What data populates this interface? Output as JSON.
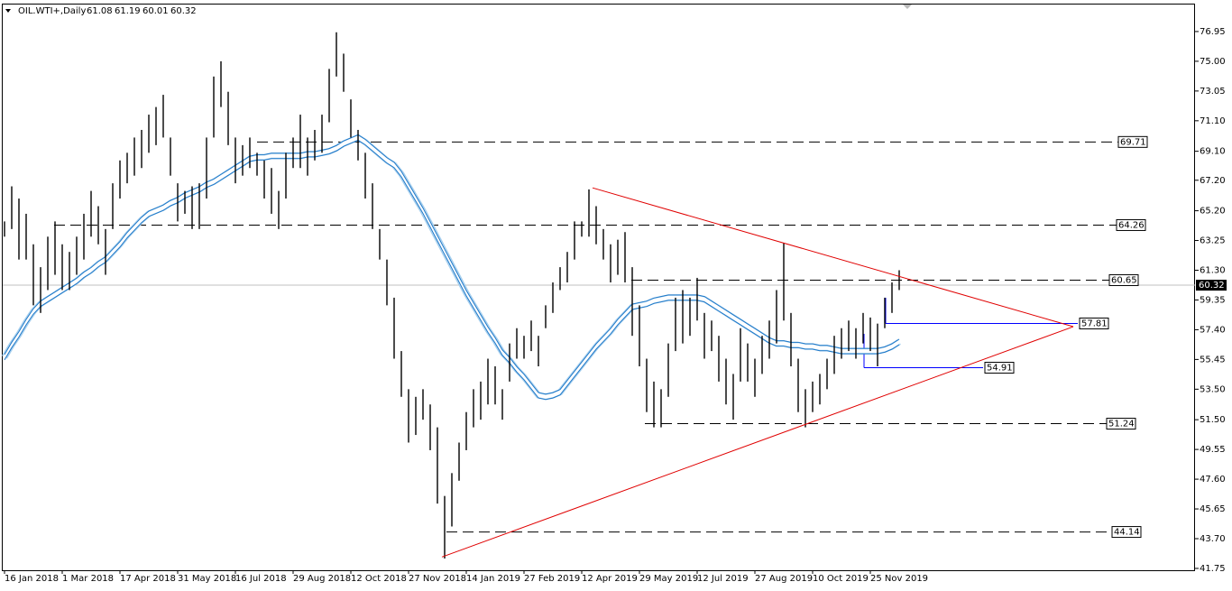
{
  "chart_data": {
    "type": "ohlc",
    "title": "OIL.WTI+,Daily",
    "header_values": [
      61.08,
      61.19,
      60.01,
      60.32
    ],
    "categories": [
      "16 Jan 2018",
      null,
      null,
      null,
      null,
      null,
      null,
      null,
      "1 Mar 2018",
      null,
      null,
      null,
      null,
      null,
      null,
      null,
      "17 Apr 2018",
      null,
      null,
      null,
      null,
      null,
      null,
      null,
      "31 May 2018",
      null,
      null,
      null,
      null,
      null,
      null,
      null,
      "16 Jul 2018",
      null,
      null,
      null,
      null,
      null,
      null,
      null,
      "29 Aug 2018",
      null,
      null,
      null,
      null,
      null,
      null,
      null,
      "12 Oct 2018",
      null,
      null,
      null,
      null,
      null,
      null,
      null,
      "27 Nov 2018",
      null,
      null,
      null,
      null,
      null,
      null,
      null,
      "14 Jan 2019",
      null,
      null,
      null,
      null,
      null,
      null,
      null,
      "27 Feb 2019",
      null,
      null,
      null,
      null,
      null,
      null,
      null,
      "12 Apr 2019",
      null,
      null,
      null,
      null,
      null,
      null,
      null,
      "29 May 2019",
      null,
      null,
      null,
      null,
      null,
      null,
      null,
      "12 Jul 2019",
      null,
      null,
      null,
      null,
      null,
      null,
      null,
      "27 Aug 2019",
      null,
      null,
      null,
      null,
      null,
      null,
      null,
      "10 Oct 2019",
      null,
      null,
      null,
      null,
      null,
      null,
      null,
      "25 Nov 2019",
      null,
      null,
      null,
      null
    ],
    "bars": {
      "color": "#000000",
      "high": [
        64.5,
        66.8,
        66,
        65,
        63,
        61.5,
        63.5,
        64.5,
        63,
        62.5,
        63.5,
        65,
        66.5,
        65.5,
        64,
        67,
        68.5,
        69,
        70,
        70.5,
        71.5,
        72,
        72.8,
        70,
        67,
        66.5,
        66.8,
        67,
        70,
        74,
        75,
        73,
        70,
        69.5,
        70,
        69,
        68.5,
        68,
        66.5,
        69,
        70,
        71.5,
        70,
        70.5,
        71.5,
        74.5,
        76.9,
        75.5,
        72.5,
        70.5,
        69,
        67,
        64,
        62,
        59.5,
        56,
        53.5,
        53,
        53.5,
        52.5,
        51,
        46.5,
        48,
        50,
        52,
        53.5,
        54,
        55.5,
        55,
        53.5,
        56.5,
        57.5,
        57,
        58,
        57,
        59,
        60.5,
        61.5,
        62.5,
        64.5,
        64.5,
        66.6,
        65.5,
        64,
        63,
        63.3,
        63.8,
        61.5,
        59,
        55.5,
        54,
        53.5,
        56.5,
        59.5,
        60,
        59.5,
        60.8,
        58.5,
        58,
        57,
        55.5,
        54.5,
        57.5,
        56.5,
        55.5,
        57,
        58,
        60,
        63.1,
        58.5,
        55.5,
        53.5,
        54,
        54.5,
        55.5,
        57,
        57.5,
        58,
        57.5,
        58.5,
        58.2,
        57.8,
        59.5,
        60.5,
        61.3
      ],
      "low": [
        63.5,
        64,
        62,
        62,
        59,
        58.5,
        60,
        61,
        60,
        60,
        61,
        62,
        63.5,
        63,
        61,
        64,
        66,
        67,
        67.5,
        68,
        69,
        69.5,
        70,
        67.5,
        64.5,
        65,
        64,
        64,
        66,
        70,
        72,
        69.5,
        67,
        67.5,
        68,
        67.5,
        66,
        65,
        64,
        66,
        68,
        68,
        67.5,
        68.5,
        69,
        71,
        74,
        73,
        70,
        68.5,
        66,
        64,
        62,
        59,
        55.5,
        53,
        50,
        50.5,
        51.5,
        49.5,
        46,
        42.4,
        44.5,
        47.5,
        49.5,
        51,
        51.5,
        52.5,
        52.5,
        51.5,
        54,
        55.5,
        55.5,
        56,
        55,
        57.5,
        58.5,
        60,
        60.5,
        62,
        63.5,
        63.5,
        63,
        62,
        60.5,
        61,
        60.5,
        57,
        55,
        52,
        51,
        51,
        53,
        56,
        56.5,
        57,
        58,
        55.5,
        56,
        54,
        52.5,
        51.5,
        54,
        54,
        53,
        54.5,
        55.5,
        56.5,
        58,
        55,
        52,
        51,
        52,
        52.5,
        53.5,
        54.5,
        55.5,
        56,
        55.5,
        56.5,
        56,
        55,
        57.5,
        58.5,
        60
      ]
    },
    "ma": {
      "color": "#1e78c8",
      "band_color": "#a8d0ee",
      "values": [
        55.6,
        56.4,
        57.1,
        57.9,
        58.6,
        59.1,
        59.4,
        59.7,
        60,
        60.3,
        60.6,
        61,
        61.3,
        61.7,
        62,
        62.5,
        63,
        63.6,
        64.1,
        64.6,
        65,
        65.2,
        65.4,
        65.7,
        65.9,
        66.2,
        66.4,
        66.6,
        66.9,
        67.1,
        67.4,
        67.7,
        68,
        68.3,
        68.6,
        68.7,
        68.7,
        68.8,
        68.8,
        68.8,
        68.8,
        68.8,
        68.9,
        68.9,
        69,
        69.1,
        69.3,
        69.6,
        69.8,
        70,
        69.7,
        69.3,
        68.9,
        68.5,
        68.2,
        67.6,
        66.8,
        66,
        65.2,
        64.3,
        63.4,
        62.5,
        61.6,
        60.7,
        59.8,
        59,
        58.2,
        57.4,
        56.7,
        55.9,
        55.4,
        54.8,
        54.3,
        53.7,
        53.1,
        53,
        53.1,
        53.3,
        53.9,
        54.5,
        55.1,
        55.7,
        56.3,
        56.8,
        57.3,
        57.9,
        58.4,
        58.9,
        59,
        59.1,
        59.3,
        59.4,
        59.5,
        59.5,
        59.5,
        59.5,
        59.5,
        59.4,
        59.1,
        58.8,
        58.5,
        58.2,
        57.9,
        57.6,
        57.3,
        57,
        56.7,
        56.5,
        56.5,
        56.4,
        56.4,
        56.3,
        56.3,
        56.2,
        56.2,
        56.1,
        56,
        56,
        56,
        56,
        56,
        56,
        56.1,
        56.3,
        56.6
      ]
    },
    "ylim": [
      41.63,
      78.78
    ],
    "yticks": [
      76.95,
      {
        "value": 75,
        "label": "75.00"
      },
      73.05,
      {
        "value": 71.1,
        "label": "71.10"
      },
      {
        "value": 69.1,
        "label": "69.10"
      },
      {
        "value": 67.2,
        "label": "67.20"
      },
      {
        "value": 65.2,
        "label": "65.20"
      },
      63.25,
      {
        "value": 61.3,
        "label": "61.30"
      },
      59.35,
      {
        "value": 57.4,
        "label": "57.40"
      },
      55.45,
      {
        "value": 53.5,
        "label": "53.50"
      },
      {
        "value": 51.5,
        "label": "51.50"
      },
      49.55,
      {
        "value": 47.6,
        "label": "47.60"
      },
      45.65,
      {
        "value": 43.7,
        "label": "43.70"
      },
      41.75
    ],
    "levels": [
      69.71,
      64.26,
      60.65,
      51.24,
      44.14
    ],
    "level_color": "#000000",
    "blue_levels": [
      57.81,
      54.91
    ],
    "blue_level_color": "#0000ff",
    "trendlines": [
      {
        "start": 66.7,
        "end": 57.6
      },
      {
        "start": 42.5,
        "end": 57.6
      }
    ],
    "trendline_color": "#e00000",
    "current_price": 60.32
  }
}
